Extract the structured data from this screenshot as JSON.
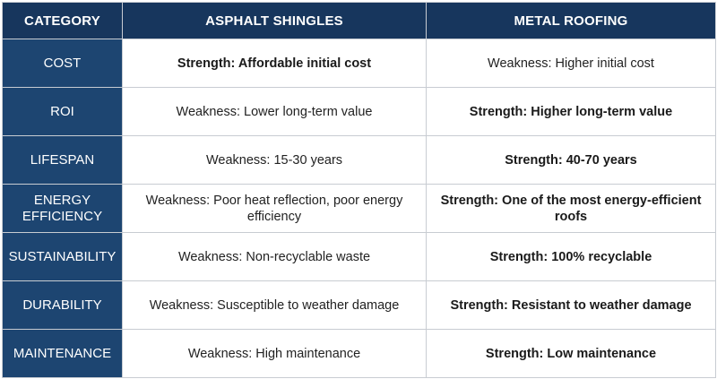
{
  "table": {
    "headers": [
      "CATEGORY",
      "ASPHALT SHINGLES",
      "METAL ROOFING"
    ],
    "rows": [
      {
        "category": "COST",
        "asphalt": "Strength: Affordable initial cost",
        "metal": "Weakness: Higher initial cost"
      },
      {
        "category": "ROI",
        "asphalt": "Weakness: Lower long-term value",
        "metal": "Strength: Higher long-term value"
      },
      {
        "category": "LIFESPAN",
        "asphalt": "Weakness: 15-30 years",
        "metal": "Strength: 40-70 years"
      },
      {
        "category": "ENERGY EFFICIENCY",
        "asphalt": "Weakness: Poor heat reflection, poor energy efficiency",
        "metal": "Strength: One of the most energy-efficient roofs"
      },
      {
        "category": "SUSTAINABILITY",
        "asphalt": "Weakness: Non-recyclable waste",
        "metal": "Strength: 100% recyclable"
      },
      {
        "category": "DURABILITY",
        "asphalt": "Weakness: Susceptible to weather damage",
        "metal": "Strength: Resistant to weather damage"
      },
      {
        "category": "MAINTENANCE",
        "asphalt": "Weakness: High maintenance",
        "metal": "Strength: Low maintenance"
      }
    ]
  }
}
